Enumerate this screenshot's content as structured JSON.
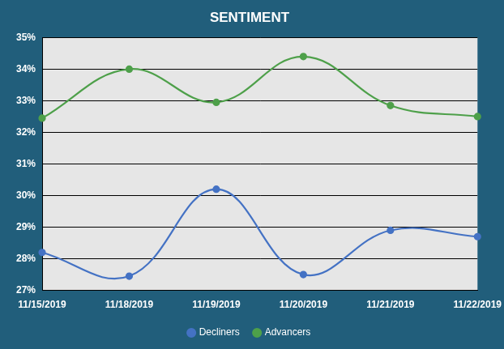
{
  "chart_data": {
    "type": "line",
    "title": "SENTIMENT",
    "categories": [
      "11/15/2019",
      "11/18/2019",
      "11/19/2019",
      "11/20/2019",
      "11/21/2019",
      "11/22/2019"
    ],
    "series": [
      {
        "name": "Decliners",
        "color": "#4472c4",
        "values": [
          28.2,
          27.45,
          30.2,
          27.5,
          28.9,
          28.7
        ]
      },
      {
        "name": "Advancers",
        "color": "#4ea04a",
        "values": [
          32.45,
          34.0,
          32.95,
          34.4,
          32.85,
          32.5
        ]
      }
    ],
    "ylim": [
      27,
      35
    ],
    "yticks": [
      {
        "value": 27,
        "label": "27%"
      },
      {
        "value": 28,
        "label": "28%"
      },
      {
        "value": 29,
        "label": "29%"
      },
      {
        "value": 30,
        "label": "30%"
      },
      {
        "value": 31,
        "label": "31%"
      },
      {
        "value": 32,
        "label": "32%"
      },
      {
        "value": 33,
        "label": "33%"
      },
      {
        "value": 34,
        "label": "34%"
      },
      {
        "value": 35,
        "label": "35%"
      }
    ],
    "grid": true,
    "legend": "bottom",
    "marker": "circle",
    "line_style": "solid"
  }
}
